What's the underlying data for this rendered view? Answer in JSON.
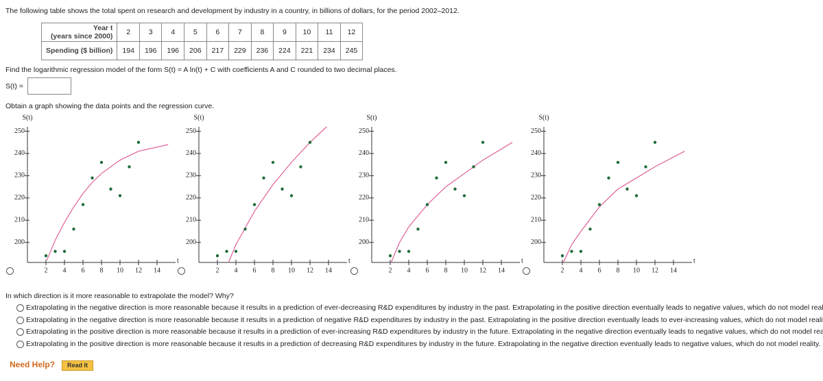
{
  "intro": "The following table shows the total spent on research and development by industry in a country, in billions of dollars, for the period 2002–2012.",
  "table": {
    "year_header": [
      "Year t",
      "(years since 2000)"
    ],
    "spending_header": "Spending ($ billion)",
    "years": [
      2,
      3,
      4,
      5,
      6,
      7,
      8,
      9,
      10,
      11,
      12
    ],
    "spending": [
      194,
      196,
      196,
      206,
      217,
      229,
      236,
      224,
      221,
      234,
      245
    ]
  },
  "prompt": "Find the logarithmic regression model of the form S(t) = A ln(t) + C with coefficients A and C rounded to two decimal places.",
  "answer_label": "S(t) =",
  "graph_prompt": "Obtain a graph showing the data points and the regression curve.",
  "graph_axes": {
    "xlabel": "t",
    "ylabel": "S(t)",
    "xlim": [
      0,
      16
    ],
    "ylim": [
      191,
      252
    ],
    "xticks": [
      2,
      4,
      6,
      8,
      10,
      12,
      14
    ],
    "yticks": [
      200,
      210,
      220,
      230,
      240,
      250
    ]
  },
  "graphs": [
    {
      "curve": {
        "x": [
          2.1,
          3,
          4,
          5,
          6,
          7,
          8,
          10,
          12,
          15.2
        ],
        "y": [
          192,
          201,
          209,
          216,
          222,
          227,
          231,
          237,
          241,
          244
        ]
      }
    },
    {
      "curve": {
        "x": [
          3.2,
          4,
          6,
          8,
          10,
          12,
          13.8
        ],
        "y": [
          191,
          199,
          214,
          226,
          236,
          245,
          252
        ]
      }
    },
    {
      "curve": {
        "x": [
          2.1,
          3,
          4,
          6,
          8,
          10,
          12,
          15.2
        ],
        "y": [
          191,
          200,
          207,
          217,
          225,
          231,
          237,
          245
        ]
      }
    },
    {
      "curve": {
        "x": [
          2.1,
          3,
          4,
          6,
          8,
          10,
          12,
          15.2
        ],
        "y": [
          191,
          199,
          205,
          216,
          224,
          229,
          234,
          241
        ]
      }
    }
  ],
  "question": "In which direction is it more reasonable to extrapolate the model? Why?",
  "options": [
    "Extrapolating in the negative direction is more reasonable because it results in a prediction of ever-decreasing R&D expenditures by industry in the past. Extrapolating in the positive direction eventually leads to negative values, which do not model reality.",
    "Extrapolating in the negative direction is more reasonable because it results in a prediction of negative R&D expenditures by industry in the past. Extrapolating in the positive direction eventually leads to ever-increasing values, which do not model reality.",
    "Extrapolating in the positive direction is more reasonable because it results in a prediction of ever-increasing R&D expenditures by industry in the future. Extrapolating in the negative direction eventually leads to negative values, which do not model reality.",
    "Extrapolating in the positive direction is more reasonable because it results in a prediction of decreasing R&D expenditures by industry in the future. Extrapolating in the negative direction eventually leads to negative values, which do not model reality."
  ],
  "help": {
    "label": "Need Help?",
    "button": "Read It"
  }
}
